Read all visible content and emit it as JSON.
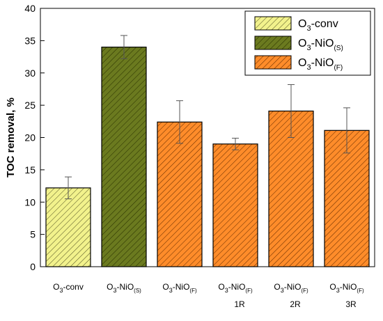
{
  "chart_data": {
    "type": "bar",
    "ylabel": "TOC removal, %",
    "ylim": [
      0,
      40
    ],
    "yticks": [
      0,
      5,
      10,
      15,
      20,
      25,
      30,
      35,
      40
    ],
    "grid": false,
    "legend_position": "top-right",
    "categories": [
      {
        "main": "O",
        "sub": "3",
        "rest": "-conv",
        "rest_sub": "",
        "line2": ""
      },
      {
        "main": "O",
        "sub": "3",
        "rest": "-NiO",
        "rest_sub": "(S)",
        "line2": ""
      },
      {
        "main": "O",
        "sub": "3",
        "rest": "-NiO",
        "rest_sub": "(F)",
        "line2": ""
      },
      {
        "main": "O",
        "sub": "3",
        "rest": "-NiO",
        "rest_sub": "(F)",
        "line2": "1R"
      },
      {
        "main": "O",
        "sub": "3",
        "rest": "-NiO",
        "rest_sub": "(F)",
        "line2": "2R"
      },
      {
        "main": "O",
        "sub": "3",
        "rest": "-NiO",
        "rest_sub": "(F)",
        "line2": "3R"
      }
    ],
    "values": [
      12.2,
      34.0,
      22.4,
      19.0,
      24.1,
      21.1
    ],
    "errors": [
      1.7,
      1.8,
      3.3,
      0.9,
      4.1,
      3.5
    ],
    "series_of_bar": [
      0,
      1,
      2,
      2,
      2,
      2
    ],
    "series": [
      {
        "main": "O",
        "sub": "3",
        "rest": "-conv",
        "rest_sub": "",
        "color": "#f2f28c",
        "hatch": "#5a5a2a"
      },
      {
        "main": "O",
        "sub": "3",
        "rest": "-NiO",
        "rest_sub": "(S)",
        "color": "#6b7a1f",
        "hatch": "#2b3300"
      },
      {
        "main": "O",
        "sub": "3",
        "rest": "-NiO",
        "rest_sub": "(F)",
        "color": "#ff8c2a",
        "hatch": "#6a3000"
      }
    ]
  }
}
